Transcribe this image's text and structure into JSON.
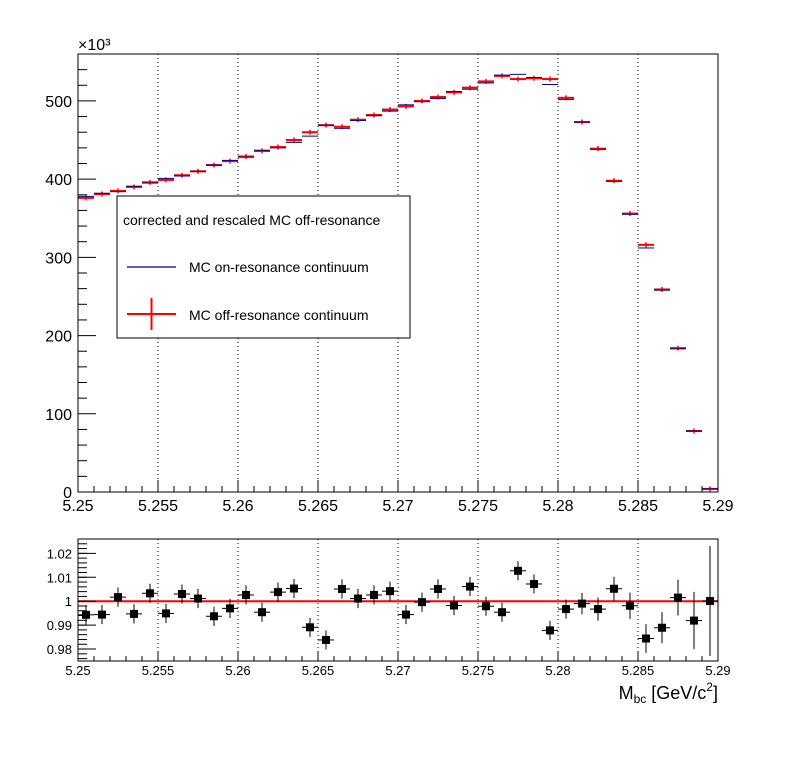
{
  "chart_data": [
    {
      "type": "line",
      "exponent_label": "×10³",
      "xlim": [
        5.25,
        5.29
      ],
      "ylim": [
        0,
        560
      ],
      "x_ticks": [
        "5.25",
        "5.255",
        "5.26",
        "5.265",
        "5.27",
        "5.275",
        "5.28",
        "5.285",
        "5.29"
      ],
      "y_ticks": [
        "0",
        "100",
        "200",
        "300",
        "400",
        "500"
      ],
      "grid": "vertical dotted at major x ticks",
      "legend": {
        "title": "corrected and rescaled MC off-resonance",
        "placement": "center-left",
        "entries": [
          "MC on-resonance continuum",
          "MC off-resonance continuum"
        ]
      },
      "x": [
        5.2505,
        5.2515,
        5.2525,
        5.2535,
        5.2545,
        5.2555,
        5.2565,
        5.2575,
        5.2585,
        5.2595,
        5.2605,
        5.2615,
        5.2625,
        5.2635,
        5.2645,
        5.2655,
        5.2665,
        5.2675,
        5.2685,
        5.2695,
        5.2705,
        5.2715,
        5.2725,
        5.2735,
        5.2745,
        5.2755,
        5.2765,
        5.2775,
        5.2785,
        5.2795,
        5.2805,
        5.2815,
        5.2825,
        5.2835,
        5.2845,
        5.2855,
        5.2865,
        5.2875,
        5.2885,
        5.2895
      ],
      "series": [
        {
          "name": "MC on-resonance continuum",
          "color": "#000099",
          "values": [
            378,
            382,
            384,
            391,
            395,
            401,
            404,
            410,
            418,
            424,
            428,
            437,
            440,
            447,
            455,
            469,
            465,
            475,
            481,
            487,
            495,
            499,
            503,
            512,
            515,
            523,
            533,
            534,
            530,
            521,
            502,
            473,
            438,
            397,
            355,
            312,
            258,
            183,
            78,
            4
          ]
        },
        {
          "name": "MC off-resonance continuum",
          "color": "#ff0000",
          "values": [
            376,
            381,
            385,
            390,
            396,
            399,
            405,
            410,
            418,
            423,
            429,
            436,
            441,
            450,
            460,
            469,
            467,
            476,
            482,
            489,
            493,
            500,
            505,
            511,
            517,
            525,
            532,
            528,
            529,
            528,
            504,
            473,
            439,
            398,
            356,
            316,
            259,
            184,
            78,
            4
          ]
        }
      ]
    },
    {
      "type": "scatter",
      "xlabel": "M_bc [GeV/c²]",
      "xlabel_main": "M",
      "xlabel_sub": "bc",
      "xlabel_rest": " [GeV/c",
      "xlabel_sup": "2",
      "xlabel_end": "]",
      "xlim": [
        5.25,
        5.29
      ],
      "ylim": [
        0.975,
        1.026
      ],
      "x_ticks": [
        "5.25",
        "5.255",
        "5.26",
        "5.265",
        "5.27",
        "5.275",
        "5.28",
        "5.285",
        "5.29"
      ],
      "y_ticks": [
        "0.98",
        "0.99",
        "1",
        "1.01",
        "1.02"
      ],
      "reference_line": 1.0,
      "reference_color": "#ff0000",
      "x": [
        5.2505,
        5.2515,
        5.2525,
        5.2535,
        5.2545,
        5.2555,
        5.2565,
        5.2575,
        5.2585,
        5.2595,
        5.2605,
        5.2615,
        5.2625,
        5.2635,
        5.2645,
        5.2655,
        5.2665,
        5.2675,
        5.2685,
        5.2695,
        5.2705,
        5.2715,
        5.2725,
        5.2735,
        5.2745,
        5.2755,
        5.2765,
        5.2775,
        5.2785,
        5.2795,
        5.2805,
        5.2815,
        5.2825,
        5.2835,
        5.2845,
        5.2855,
        5.2865,
        5.2875,
        5.2885,
        5.2895
      ],
      "values": [
        0.9943,
        0.9944,
        1.0017,
        0.9947,
        1.0033,
        0.9949,
        1.003,
        1.0011,
        0.9937,
        0.997,
        1.0026,
        0.9954,
        1.0038,
        1.0053,
        0.9891,
        0.9838,
        1.0051,
        1.0011,
        1.0026,
        1.0042,
        0.9944,
        0.9996,
        1.0051,
        0.9982,
        1.0061,
        0.9979,
        0.9954,
        1.0127,
        1.0072,
        0.9878,
        0.9967,
        0.999,
        0.9967,
        1.0052,
        0.9981,
        0.9844,
        0.9889,
        1.0015,
        0.9919,
        1.0001
      ],
      "errors": [
        0.004,
        0.004,
        0.004,
        0.004,
        0.004,
        0.004,
        0.004,
        0.004,
        0.004,
        0.004,
        0.004,
        0.004,
        0.004,
        0.004,
        0.004,
        0.004,
        0.004,
        0.004,
        0.004,
        0.004,
        0.004,
        0.004,
        0.004,
        0.004,
        0.004,
        0.004,
        0.004,
        0.004,
        0.004,
        0.004,
        0.004,
        0.0045,
        0.0048,
        0.005,
        0.0055,
        0.006,
        0.0065,
        0.0075,
        0.012,
        0.023
      ]
    }
  ]
}
